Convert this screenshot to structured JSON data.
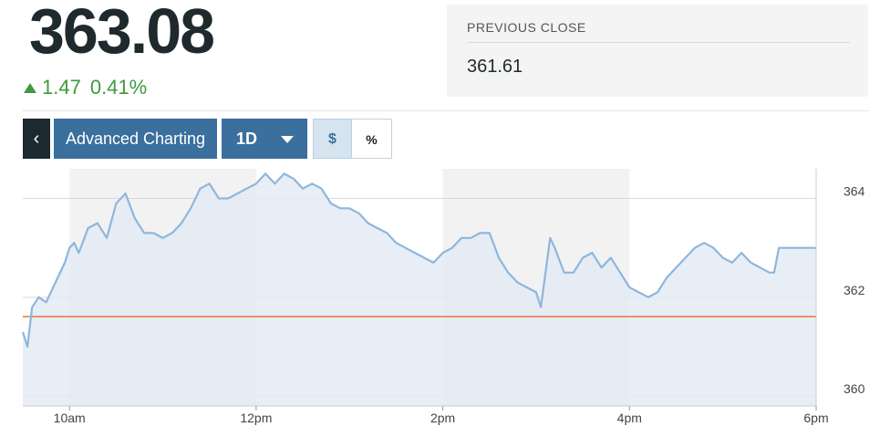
{
  "quote": {
    "price": "363.08",
    "change": "1.47",
    "change_pct": "0.41%",
    "previous_close_label": "PREVIOUS CLOSE",
    "previous_close": "361.61"
  },
  "toolbar": {
    "back_glyph": "‹",
    "advanced_label": "Advanced Charting",
    "range_label": "1D",
    "dollar_label": "$",
    "percent_label": "%"
  },
  "colors": {
    "up": "#3f9a3f",
    "line": "#8fb6dc",
    "area": "#e3ebf3",
    "previous_close_line": "#e8743b",
    "button": "#3a6f9e"
  },
  "icons": [
    "chevron-left-icon",
    "caret-down-icon",
    "triangle-up-icon"
  ],
  "chart_data": {
    "type": "area",
    "x_ticks": [
      "10am",
      "12pm",
      "2pm",
      "4pm",
      "6pm"
    ],
    "y_ticks": [
      360,
      362,
      364
    ],
    "ylim": [
      359.8,
      364.6
    ],
    "xlim": [
      9.5,
      18.0
    ],
    "reference_line": 361.61,
    "shaded_bands": [
      [
        10,
        12
      ],
      [
        14,
        16
      ]
    ],
    "series": [
      {
        "x": [
          9.5,
          9.55,
          9.6,
          9.67,
          9.75,
          9.85,
          9.95,
          10.0,
          10.05,
          10.1,
          10.2,
          10.3,
          10.4,
          10.5,
          10.6,
          10.7,
          10.8,
          10.9,
          11.0,
          11.1,
          11.2,
          11.3,
          11.4,
          11.5,
          11.6,
          11.7,
          11.8,
          11.9,
          12.0,
          12.1,
          12.2,
          12.3,
          12.4,
          12.5,
          12.6,
          12.7,
          12.8,
          12.9,
          13.0,
          13.1,
          13.2,
          13.3,
          13.4,
          13.5,
          13.6,
          13.7,
          13.8,
          13.9,
          14.0,
          14.1,
          14.2,
          14.3,
          14.4,
          14.5,
          14.6,
          14.7,
          14.8,
          14.9,
          15.0,
          15.05,
          15.1,
          15.15,
          15.2,
          15.3,
          15.4,
          15.5,
          15.6,
          15.7,
          15.8,
          15.9,
          16.0,
          16.1,
          16.2,
          16.3,
          16.4,
          16.5,
          16.6,
          16.7,
          16.8,
          16.9,
          17.0,
          17.1,
          17.2,
          17.3,
          17.4,
          17.5,
          17.55,
          17.6,
          17.7,
          17.8,
          17.9,
          18.0
        ],
        "y": [
          361.3,
          361.0,
          361.8,
          362.0,
          361.9,
          362.3,
          362.7,
          363.0,
          363.1,
          362.9,
          363.4,
          363.5,
          363.2,
          363.9,
          364.1,
          363.6,
          363.3,
          363.3,
          363.2,
          363.3,
          363.5,
          363.8,
          364.2,
          364.3,
          364.0,
          364.0,
          364.1,
          364.2,
          364.3,
          364.5,
          364.3,
          364.5,
          364.4,
          364.2,
          364.3,
          364.2,
          363.9,
          363.8,
          363.8,
          363.7,
          363.5,
          363.4,
          363.3,
          363.1,
          363.0,
          362.9,
          362.8,
          362.7,
          362.9,
          363.0,
          363.2,
          363.2,
          363.3,
          363.3,
          362.8,
          362.5,
          362.3,
          362.2,
          362.1,
          361.8,
          362.5,
          363.2,
          363.0,
          362.5,
          362.5,
          362.8,
          362.9,
          362.6,
          362.8,
          362.5,
          362.2,
          362.1,
          362.0,
          362.1,
          362.4,
          362.6,
          362.8,
          363.0,
          363.1,
          363.0,
          362.8,
          362.7,
          362.9,
          362.7,
          362.6,
          362.5,
          362.5,
          363.0,
          363.0,
          363.0,
          363.0,
          363.0
        ]
      }
    ]
  }
}
